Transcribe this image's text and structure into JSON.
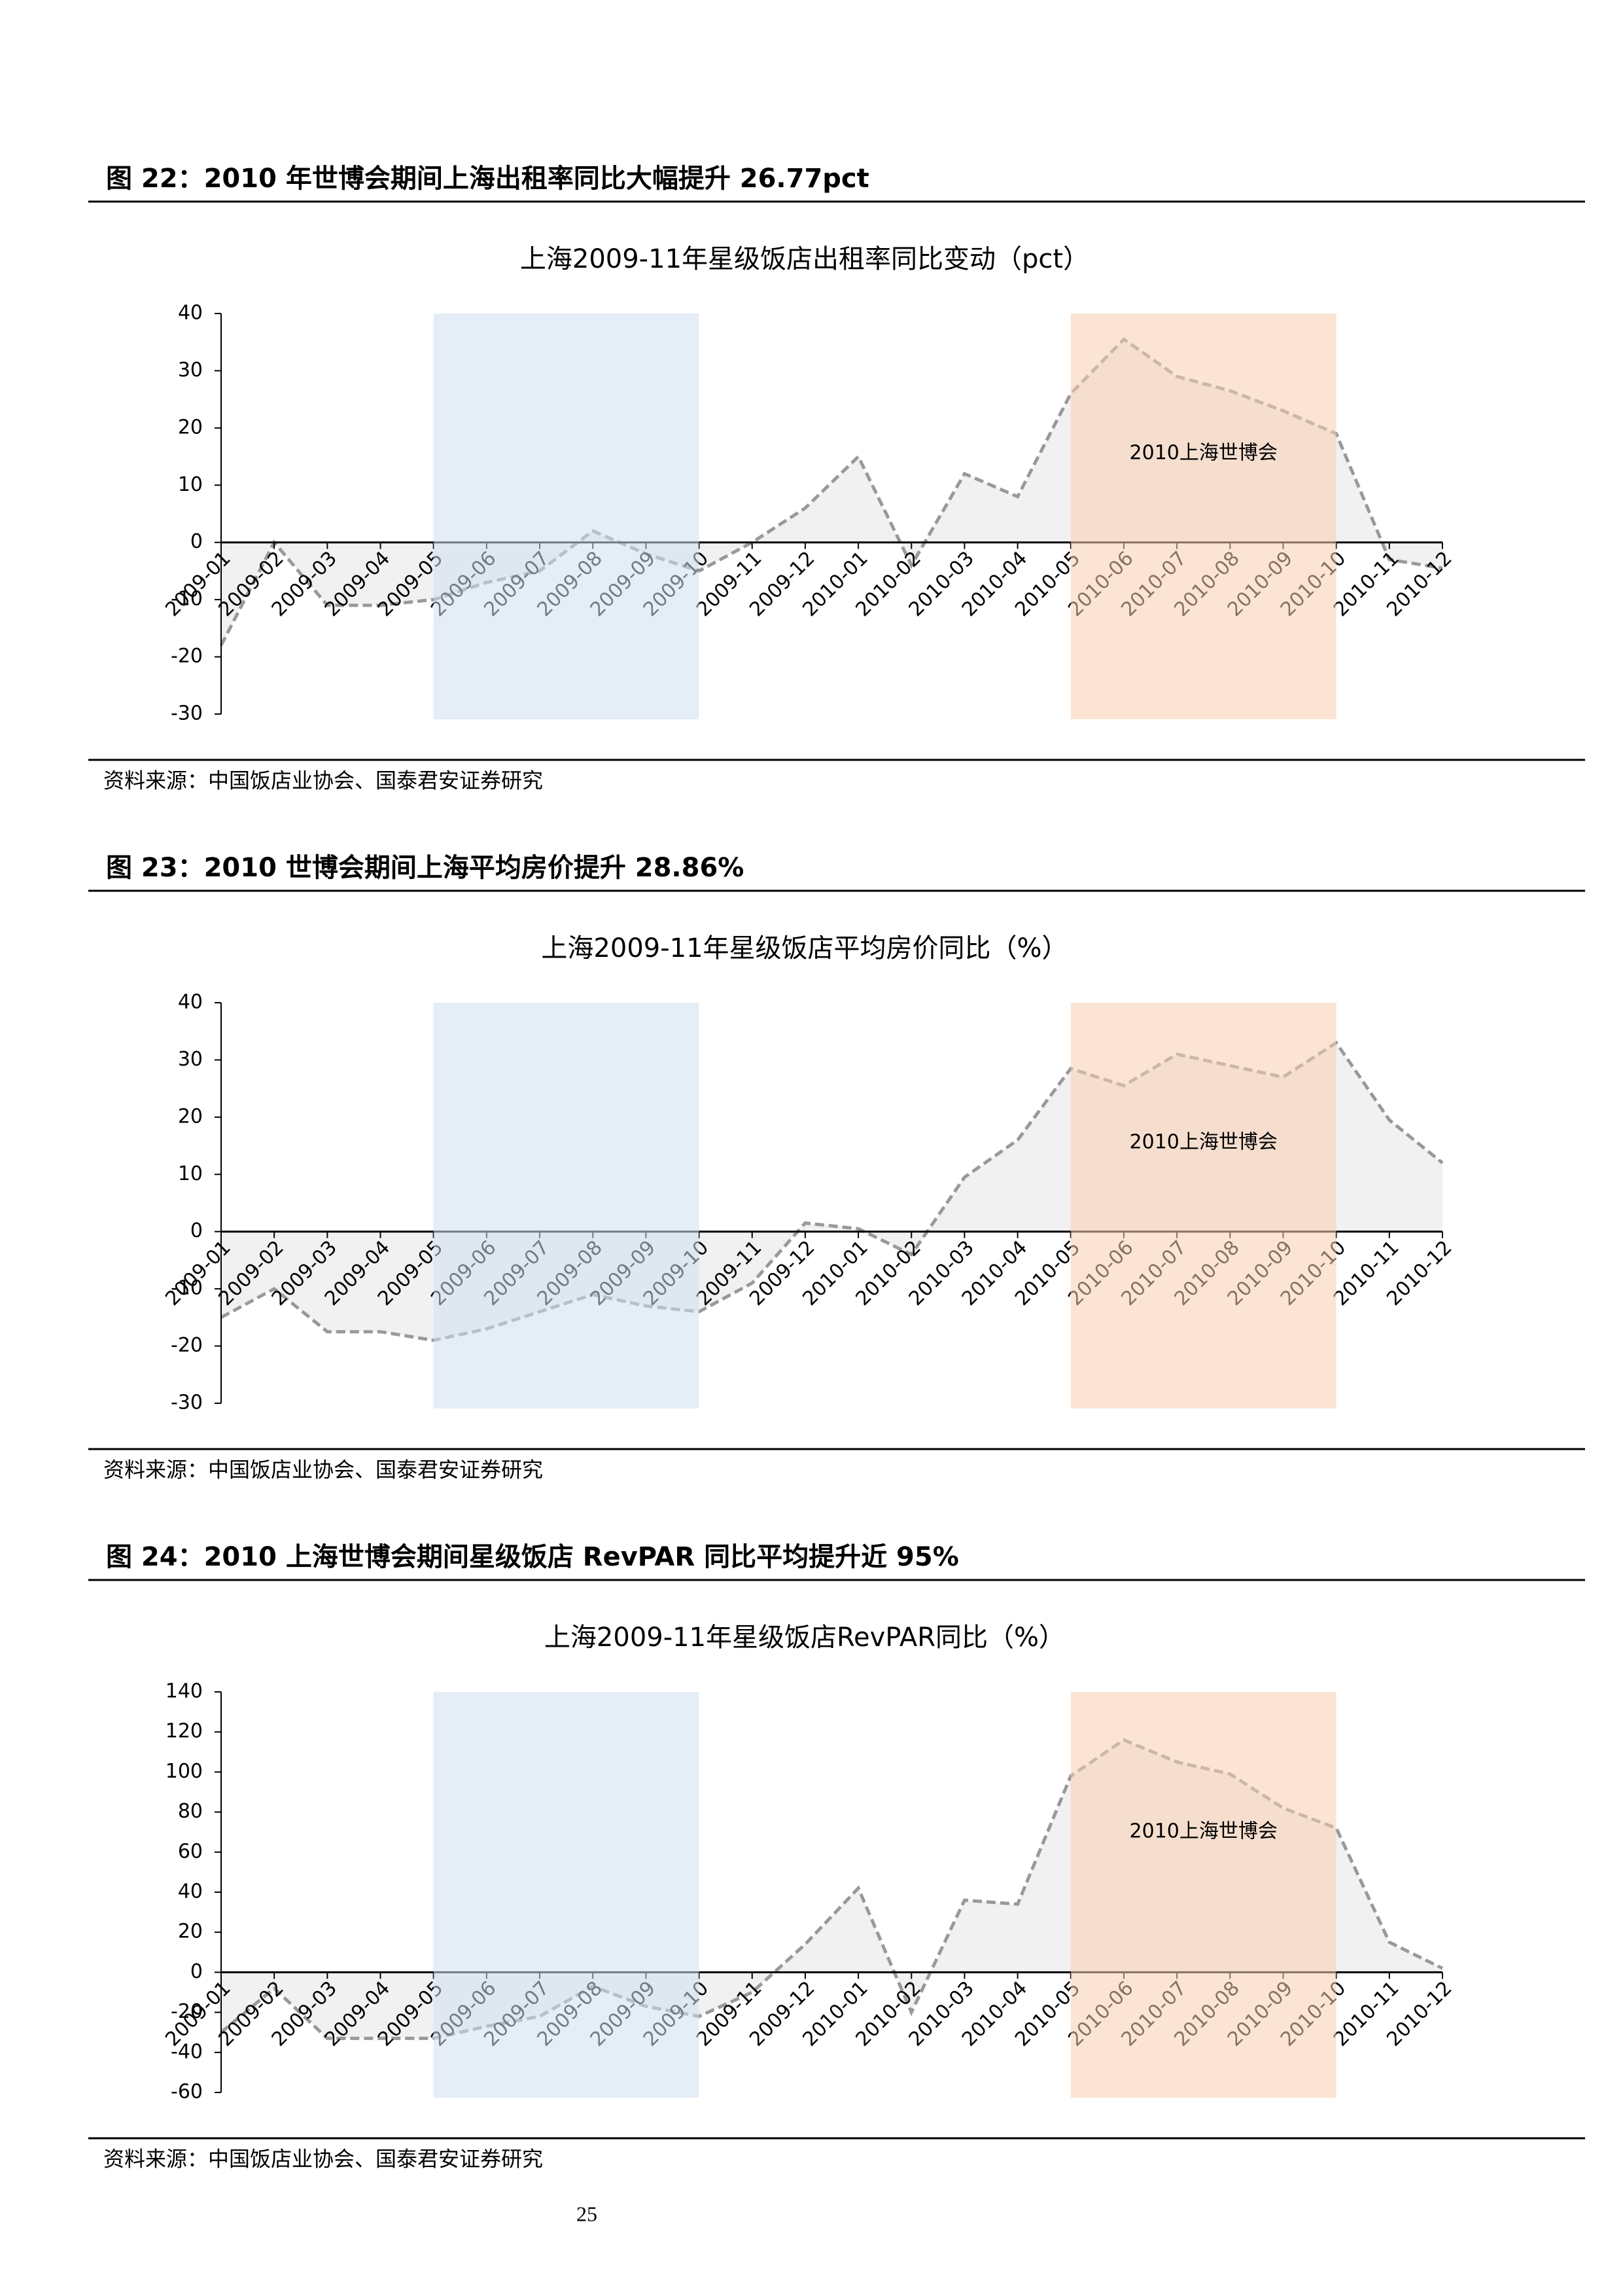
{
  "chart_data": [
    {
      "type": "area",
      "caption": "图 22：2010 年世博会期间上海出租率同比大幅提升 26.77pct",
      "title": "上海2009-11年星级饭店出租率同比变动（pct）",
      "categories": [
        "2009-01",
        "2009-02",
        "2009-03",
        "2009-04",
        "2009-05",
        "2009-06",
        "2009-07",
        "2009-08",
        "2009-09",
        "2009-10",
        "2009-11",
        "2009-12",
        "2010-01",
        "2010-02",
        "2010-03",
        "2010-04",
        "2010-05",
        "2010-06",
        "2010-07",
        "2010-08",
        "2010-09",
        "2010-10",
        "2010-11",
        "2010-12"
      ],
      "values": [
        -18,
        0,
        -11,
        -11,
        -10,
        -7,
        -5,
        2,
        -2,
        -5,
        0,
        6,
        15,
        -4,
        12,
        8,
        26,
        35.5,
        29,
        26.5,
        23,
        19,
        -3,
        -4.5
      ],
      "ylim": [
        -30,
        40
      ],
      "yticks": [
        -30,
        -20,
        -10,
        0,
        10,
        20,
        30,
        40
      ],
      "line_color": "#999999",
      "fill_color": "#f1f1f1",
      "bands": [
        {
          "start": "2009-05",
          "end": "2009-10",
          "color": "#cfe0f0"
        },
        {
          "start": "2010-05",
          "end": "2010-10",
          "color": "#f8cdb0",
          "label": "2010上海世博会"
        }
      ],
      "source": "资料来源：中国饭店业协会、国泰君安证券研究"
    },
    {
      "type": "area",
      "caption": "图 23：2010 世博会期间上海平均房价提升 28.86%",
      "title": "上海2009-11年星级饭店平均房价同比（%）",
      "categories": [
        "2009-01",
        "2009-02",
        "2009-03",
        "2009-04",
        "2009-05",
        "2009-06",
        "2009-07",
        "2009-08",
        "2009-09",
        "2009-10",
        "2009-11",
        "2009-12",
        "2010-01",
        "2010-02",
        "2010-03",
        "2010-04",
        "2010-05",
        "2010-06",
        "2010-07",
        "2010-08",
        "2010-09",
        "2010-10",
        "2010-11",
        "2010-12"
      ],
      "values": [
        -15,
        -10,
        -17.5,
        -17.5,
        -19,
        -17,
        -14,
        -11,
        -13,
        -14,
        -9,
        1.5,
        0.5,
        -4,
        9.5,
        16,
        28.5,
        25.5,
        31,
        29,
        27,
        33,
        19.5,
        12
      ],
      "ylim": [
        -30,
        40
      ],
      "yticks": [
        -30,
        -20,
        -10,
        0,
        10,
        20,
        30,
        40
      ],
      "line_color": "#999999",
      "fill_color": "#f1f1f1",
      "bands": [
        {
          "start": "2009-05",
          "end": "2009-10",
          "color": "#cfe0f0"
        },
        {
          "start": "2010-05",
          "end": "2010-10",
          "color": "#f8cdb0",
          "label": "2010上海世博会"
        }
      ],
      "source": "资料来源：中国饭店业协会、国泰君安证券研究"
    },
    {
      "type": "area",
      "caption": "图 24：2010 上海世博会期间星级饭店 RevPAR 同比平均提升近 95%",
      "title": "上海2009-11年星级饭店RevPAR同比（%）",
      "categories": [
        "2009-01",
        "2009-02",
        "2009-03",
        "2009-04",
        "2009-05",
        "2009-06",
        "2009-07",
        "2009-08",
        "2009-09",
        "2009-10",
        "2009-11",
        "2009-12",
        "2010-01",
        "2010-02",
        "2010-03",
        "2010-04",
        "2010-05",
        "2010-06",
        "2010-07",
        "2010-08",
        "2010-09",
        "2010-10",
        "2010-11",
        "2010-12"
      ],
      "values": [
        -30,
        -8,
        -33,
        -33,
        -33,
        -27,
        -22,
        -7,
        -17,
        -22,
        -10,
        14,
        42,
        -20,
        36,
        34,
        98,
        116,
        105,
        99,
        82,
        72,
        15,
        2
      ],
      "ylim": [
        -60,
        140
      ],
      "yticks": [
        -60,
        -40,
        -20,
        0,
        20,
        40,
        60,
        80,
        100,
        120,
        140
      ],
      "line_color": "#999999",
      "fill_color": "#f1f1f1",
      "bands": [
        {
          "start": "2009-05",
          "end": "2009-10",
          "color": "#cfe0f0"
        },
        {
          "start": "2010-05",
          "end": "2010-10",
          "color": "#f8cdb0",
          "label": "2010上海世博会"
        }
      ],
      "source": "资料来源：中国饭店业协会、国泰君安证券研究"
    }
  ],
  "page_number": "25"
}
